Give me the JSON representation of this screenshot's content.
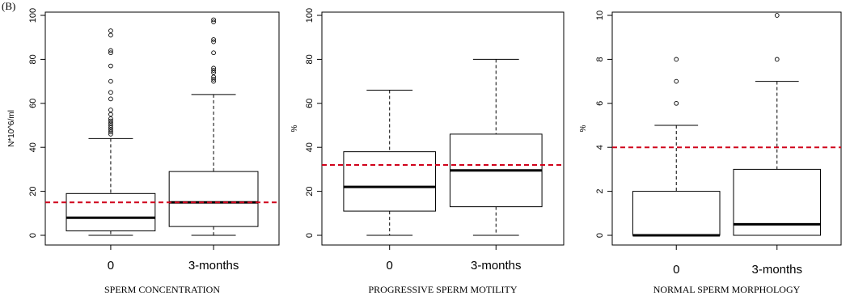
{
  "panel_label": "(B)",
  "chart_data": [
    {
      "type": "box",
      "title": "",
      "xlabel": "SPERM CONCENTRATION",
      "ylabel": "N*10^6/ml",
      "ylim": [
        0,
        100
      ],
      "yticks": [
        0,
        20,
        40,
        60,
        80,
        100
      ],
      "categories": [
        "0",
        "3-months"
      ],
      "reference_line": 15,
      "boxes": [
        {
          "min": 0,
          "q1": 2,
          "median": 8,
          "q3": 19,
          "max": 44,
          "outliers": [
            46,
            47,
            48,
            49,
            50,
            51,
            52,
            53,
            55,
            57,
            62,
            65,
            70,
            77,
            83,
            84,
            91,
            93
          ]
        },
        {
          "min": 0,
          "q1": 4,
          "median": 15,
          "q3": 29,
          "max": 64,
          "outliers": [
            70,
            71,
            72,
            74,
            75,
            76,
            83,
            88,
            89,
            97,
            98
          ]
        }
      ]
    },
    {
      "type": "box",
      "title": "",
      "xlabel": "PROGRESSIVE SPERM MOTILITY",
      "ylabel": "%",
      "ylim": [
        0,
        100
      ],
      "yticks": [
        0,
        20,
        40,
        60,
        80,
        100
      ],
      "categories": [
        "0",
        "3-months"
      ],
      "reference_line": 32,
      "boxes": [
        {
          "min": 0,
          "q1": 11,
          "median": 22,
          "q3": 38,
          "max": 66,
          "outliers": []
        },
        {
          "min": 0,
          "q1": 13,
          "median": 29.5,
          "q3": 46,
          "max": 80,
          "outliers": []
        }
      ]
    },
    {
      "type": "box",
      "title": "",
      "xlabel": "NORMAL SPERM MORPHOLOGY",
      "ylabel": "%",
      "ylim": [
        0,
        10
      ],
      "yticks": [
        0,
        2,
        4,
        6,
        8,
        10
      ],
      "categories": [
        "0",
        "3-months"
      ],
      "reference_line": 4,
      "boxes": [
        {
          "min": 0,
          "q1": 0,
          "median": 0,
          "q3": 2,
          "max": 5,
          "outliers": [
            6,
            7,
            8
          ]
        },
        {
          "min": 0,
          "q1": 0,
          "median": 0.5,
          "q3": 3,
          "max": 7,
          "outliers": [
            8,
            10
          ]
        }
      ]
    }
  ]
}
